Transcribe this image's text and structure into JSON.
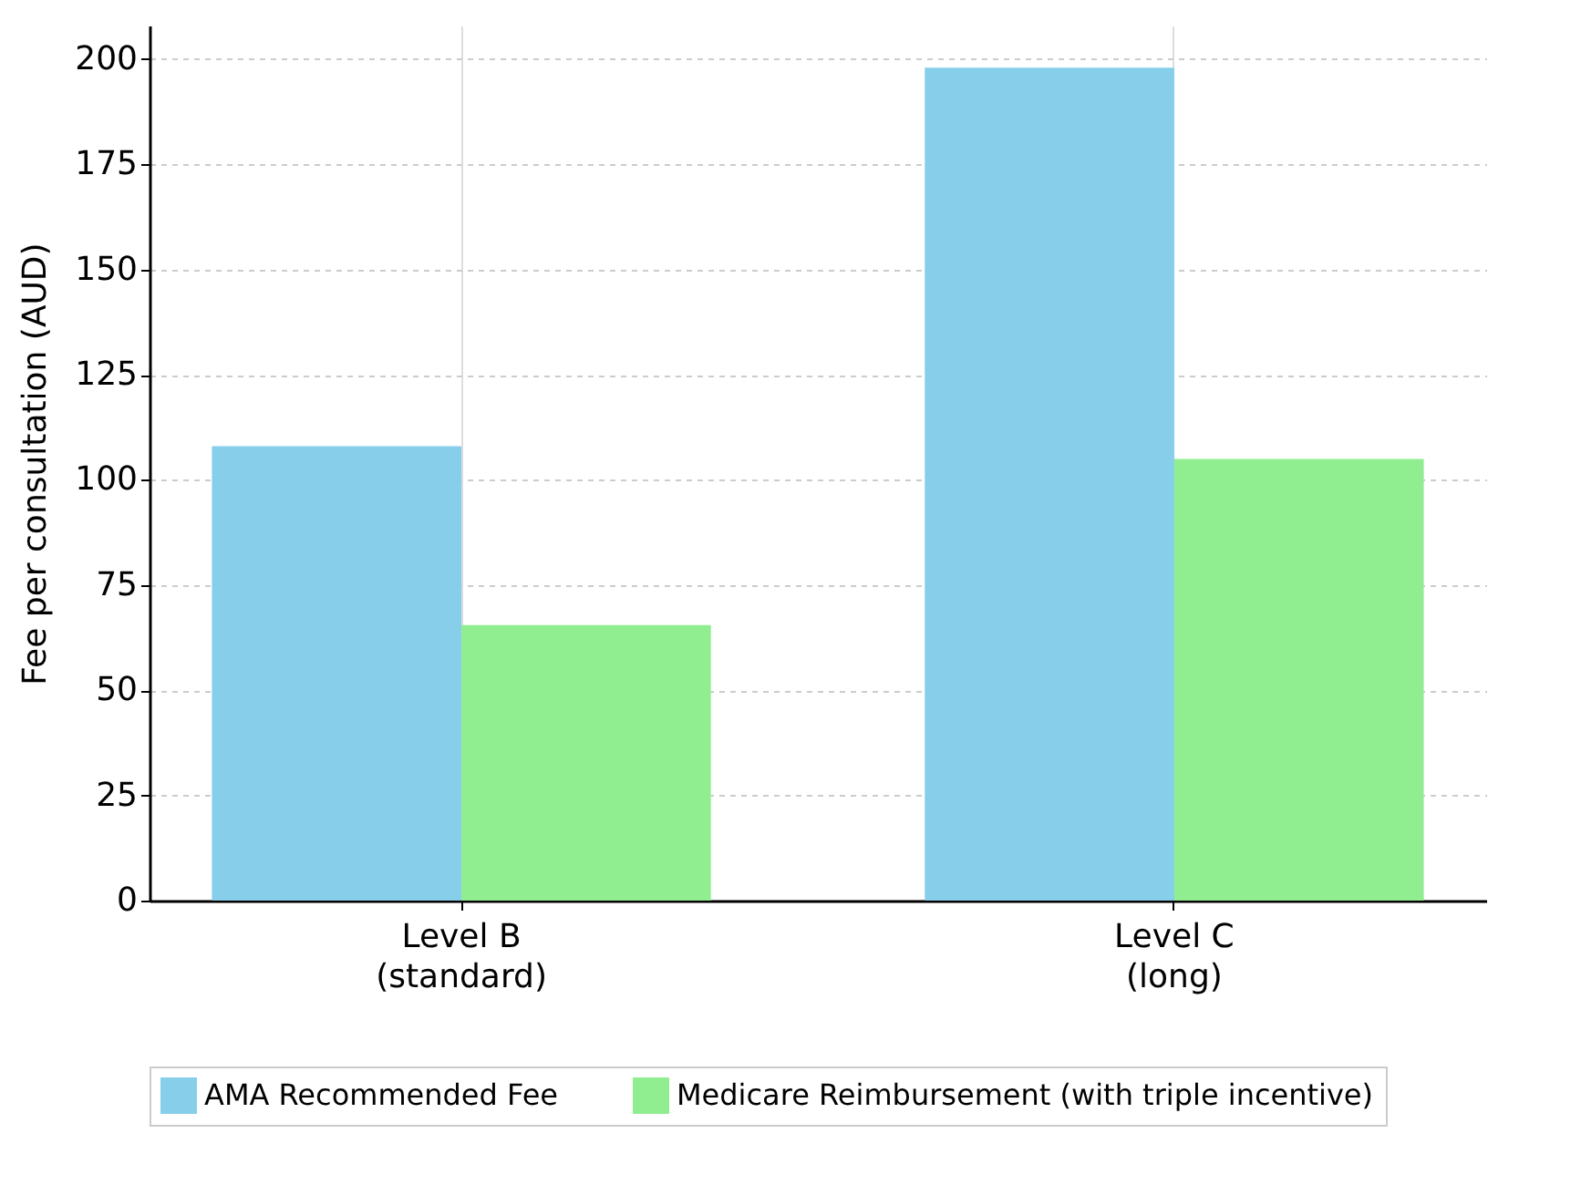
{
  "chart_data": {
    "type": "bar",
    "ylabel": "Fee per consultation (AUD)",
    "categories": [
      "Level B\n(standard)",
      "Level C\n(long)"
    ],
    "series": [
      {
        "name": "AMA Recommended Fee",
        "color": "#87ceeb",
        "values": [
          108,
          198
        ]
      },
      {
        "name": "Medicare Reimbursement (with triple incentive)",
        "color": "#90ee90",
        "values": [
          65.5,
          105
        ]
      }
    ],
    "ylim": [
      0,
      208
    ],
    "yticks": [
      0,
      25,
      50,
      75,
      100,
      125,
      150,
      175,
      200
    ],
    "grid": true,
    "legend": "bottom"
  }
}
